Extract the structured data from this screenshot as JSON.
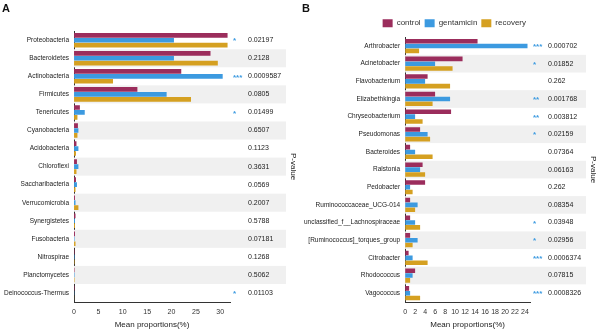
{
  "chart_data": [
    {
      "type": "bar",
      "title": "A",
      "orientation": "horizontal",
      "grid": false,
      "categories": [
        "Proteobacteria",
        "Bacteroidetes",
        "Actinobacteria",
        "Firmicutes",
        "Tenericutes",
        "Cyanobacteria",
        "Acidobacteria",
        "Chloroflexi",
        "Saccharibacteria",
        "Verrucomicrobia",
        "Synergistetes",
        "Fusobacteria",
        "Nitrospirae",
        "Planctomycetes",
        "Deinococcus-Thermus"
      ],
      "series": [
        {
          "name": "control",
          "color": "#9b2d5c",
          "values": [
            31.5,
            28,
            22,
            13,
            1.2,
            0.8,
            0.5,
            0.6,
            0.4,
            0.2,
            0.3,
            0.2,
            0.1,
            0.1,
            0.1
          ]
        },
        {
          "name": "gentamicin",
          "color": "#3c9ae0",
          "values": [
            20.5,
            20.5,
            30.5,
            19,
            2.2,
            0.9,
            0.9,
            0.9,
            0.6,
            0.3,
            0.2,
            0.1,
            0.1,
            0.1,
            0.05
          ]
        },
        {
          "name": "recovery",
          "color": "#d5a021",
          "values": [
            31.5,
            29.5,
            8,
            24,
            0.7,
            0.7,
            0.4,
            0.5,
            0.3,
            0.9,
            0.2,
            0.3,
            0.1,
            0.1,
            0.02
          ]
        }
      ],
      "xlim": [
        0,
        32
      ],
      "xticks": [
        0,
        5,
        10,
        15,
        20,
        25,
        30
      ],
      "x_label": "Mean proportions(%)",
      "p_value_label": "P-value",
      "p_values": [
        0.02197,
        0.2128,
        0.0009587,
        0.0805,
        0.01499,
        0.6507,
        0.1123,
        0.3631,
        0.0569,
        0.2007,
        0.5788,
        0.07181,
        0.1268,
        0.5062,
        0.01103
      ],
      "significance": [
        "*",
        null,
        "***",
        null,
        "*",
        null,
        null,
        null,
        null,
        null,
        null,
        null,
        null,
        null,
        "*"
      ]
    },
    {
      "type": "bar",
      "title": "B",
      "orientation": "horizontal",
      "grid": false,
      "legend": "top right",
      "categories": [
        "Arthrobacter",
        "Acinetobacter",
        "Flavobacterium",
        "Elizabethkingia",
        "Chryseobacterium",
        "Pseudomonas",
        "Bacteroides",
        "Ralstonia",
        "Pedobacter",
        "Ruminococcaceae_UCG-014",
        "unclassified_f__Lachnospiraceae",
        "[Ruminococcus]_torques_group",
        "Citrobacter",
        "Rhodococcus",
        "Vagococcus"
      ],
      "series": [
        {
          "name": "control",
          "color": "#9b2d5c",
          "values": [
            14.5,
            11.5,
            4.5,
            6,
            9.2,
            3,
            1,
            3.5,
            4,
            1,
            1,
            1,
            0.7,
            2,
            0.8
          ]
        },
        {
          "name": "gentamicin",
          "color": "#3c9ae0",
          "values": [
            24.5,
            6,
            4,
            9,
            2,
            4.5,
            2,
            3,
            1,
            2.5,
            2,
            2.5,
            1.5,
            1.5,
            1
          ]
        },
        {
          "name": "recovery",
          "color": "#d5a021",
          "values": [
            2.8,
            9.5,
            9,
            5.5,
            3.5,
            5,
            5.5,
            4,
            1.5,
            2,
            3,
            1.5,
            4.5,
            1,
            3
          ]
        }
      ],
      "xlim": [
        0,
        25
      ],
      "xticks": [
        0,
        2,
        4,
        6,
        8,
        10,
        12,
        14,
        16,
        18,
        20,
        22,
        24
      ],
      "x_label": "Mean proportions(%)",
      "p_value_label": "P-value",
      "p_values": [
        0.000702,
        0.01852,
        0.262,
        0.001768,
        0.003812,
        0.02159,
        0.07364,
        0.06163,
        0.262,
        0.08354,
        0.03948,
        0.02956,
        0.0006374,
        0.07815,
        0.0008326
      ],
      "significance": [
        "***",
        "*",
        null,
        "**",
        "**",
        "*",
        null,
        null,
        null,
        null,
        "*",
        "*",
        "***",
        null,
        "***"
      ]
    }
  ]
}
